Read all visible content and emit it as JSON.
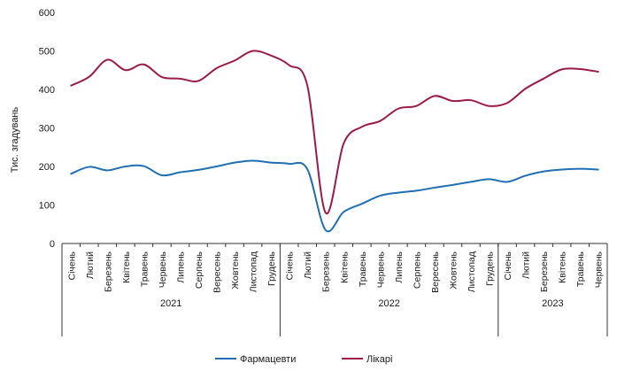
{
  "chart_data": {
    "type": "line",
    "ylabel": "Тис. згадувань",
    "ylim": [
      0,
      600
    ],
    "yticks": [
      "0",
      "100",
      "200",
      "300",
      "400",
      "500",
      "600"
    ],
    "grid": false,
    "legend_position": "bottom",
    "categories": [
      "Січень",
      "Лютий",
      "Березень",
      "Квітень",
      "Травень",
      "Червень",
      "Липень",
      "Серпень",
      "Вересень",
      "Жовтень",
      "Листопад",
      "Грудень",
      "Січень",
      "Лютий",
      "Березень",
      "Квітень",
      "Травень",
      "Червень",
      "Липень",
      "Серпень",
      "Вересень",
      "Жовтень",
      "Листопад",
      "Грудень",
      "Січень",
      "Лютий",
      "Березень",
      "Квітень",
      "Травень",
      "Червень"
    ],
    "years": [
      {
        "label": "2021",
        "start": 0,
        "end": 11
      },
      {
        "label": "2022",
        "start": 12,
        "end": 23
      },
      {
        "label": "2023",
        "start": 24,
        "end": 29
      }
    ],
    "series": [
      {
        "name": "Фармацевти",
        "color": "#1f6fb2",
        "values": [
          181,
          199,
          190,
          200,
          201,
          177,
          185,
          191,
          200,
          210,
          215,
          210,
          207,
          193,
          35,
          82,
          103,
          124,
          132,
          137,
          145,
          152,
          160,
          167,
          160,
          176,
          187,
          192,
          194,
          192
        ]
      },
      {
        "name": "Лікарі",
        "color": "#9c1a4a",
        "values": [
          410,
          433,
          477,
          450,
          465,
          432,
          428,
          422,
          455,
          475,
          500,
          488,
          463,
          410,
          80,
          260,
          303,
          318,
          350,
          357,
          383,
          370,
          372,
          357,
          365,
          402,
          428,
          452,
          453,
          446
        ]
      }
    ]
  }
}
